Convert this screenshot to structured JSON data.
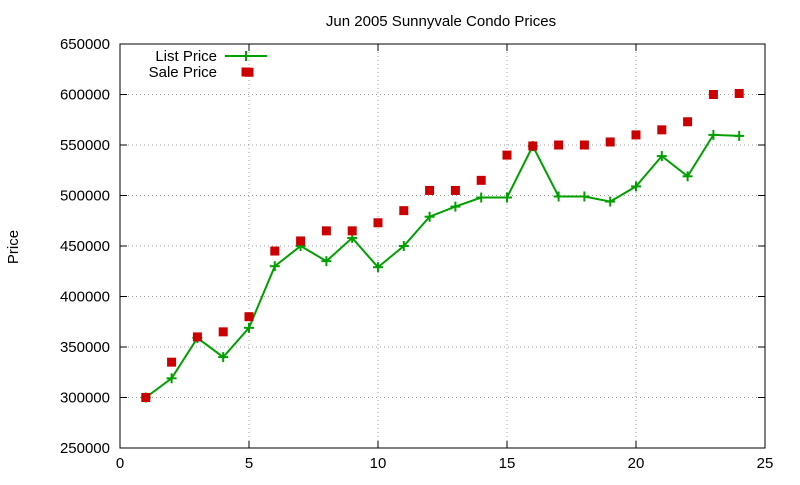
{
  "chart_data": {
    "type": "line",
    "title": "Jun 2005 Sunnyvale Condo Prices",
    "xlabel": "",
    "ylabel": "Price",
    "xlim": [
      0,
      25
    ],
    "ylim": [
      250000,
      650000
    ],
    "x_ticks": [
      0,
      5,
      10,
      15,
      20,
      25
    ],
    "y_ticks": [
      250000,
      300000,
      350000,
      400000,
      450000,
      500000,
      550000,
      600000,
      650000
    ],
    "x_tick_labels": [
      "0",
      "5",
      "10",
      "15",
      "20",
      "25"
    ],
    "y_tick_labels": [
      "250000",
      "300000",
      "350000",
      "400000",
      "450000",
      "500000",
      "550000",
      "600000",
      "650000"
    ],
    "grid": true,
    "legend_position": "top-left",
    "series": [
      {
        "name": "List Price",
        "style": "linespoints",
        "marker": "plus",
        "color": "#00a000",
        "x": [
          1,
          2,
          3,
          4,
          5,
          6,
          7,
          8,
          9,
          10,
          11,
          12,
          13,
          14,
          15,
          16,
          17,
          18,
          19,
          20,
          21,
          22,
          23,
          24
        ],
        "y": [
          300000,
          319000,
          359000,
          340000,
          369000,
          430000,
          450000,
          435000,
          458000,
          429000,
          450000,
          479000,
          489000,
          498000,
          498000,
          549000,
          499000,
          499000,
          494000,
          509000,
          539000,
          519000,
          560000,
          559000
        ]
      },
      {
        "name": "Sale Price",
        "style": "points",
        "marker": "square",
        "color": "#cc0000",
        "x": [
          1,
          2,
          3,
          4,
          5,
          5,
          6,
          7,
          8,
          9,
          10,
          11,
          12,
          13,
          14,
          15,
          16,
          17,
          18,
          19,
          20,
          21,
          22,
          23,
          24
        ],
        "y": [
          300000,
          335000,
          360000,
          365000,
          380000,
          622000,
          445000,
          455000,
          465000,
          465000,
          473000,
          485000,
          505000,
          505000,
          515000,
          540000,
          549000,
          550000,
          550000,
          553000,
          560000,
          565000,
          573000,
          600000,
          601000
        ]
      }
    ]
  }
}
